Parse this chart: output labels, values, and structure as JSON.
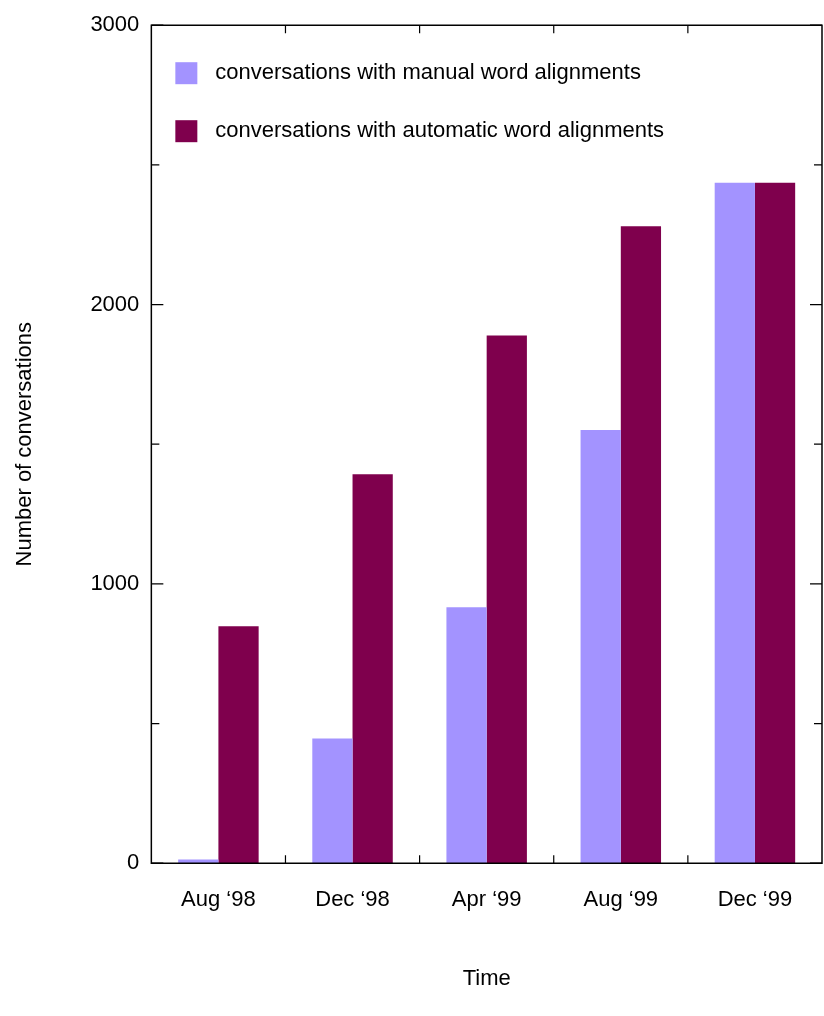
{
  "chart_data": {
    "type": "bar",
    "xlabel": "Time",
    "ylabel": "Number of conversations",
    "categories": [
      "Aug ‘98",
      "Dec ‘98",
      "Apr ‘99",
      "Aug ‘99",
      "Dec ‘99"
    ],
    "series": [
      {
        "name": "conversations with manual word alignments",
        "color": "#a393ff",
        "values": [
          13,
          446,
          916,
          1551,
          2436
        ]
      },
      {
        "name": "conversations with automatic word alignments",
        "color": "#7f004d",
        "values": [
          848,
          1392,
          1889,
          2280,
          2436
        ]
      }
    ],
    "ylim": [
      0,
      3000
    ],
    "yticks": [
      0,
      {
        "value": 500,
        "label": null
      },
      1000,
      {
        "value": 1500,
        "label": null
      },
      2000,
      {
        "value": 2500,
        "label": null
      },
      3000
    ],
    "grid": false,
    "legend": "top left"
  }
}
